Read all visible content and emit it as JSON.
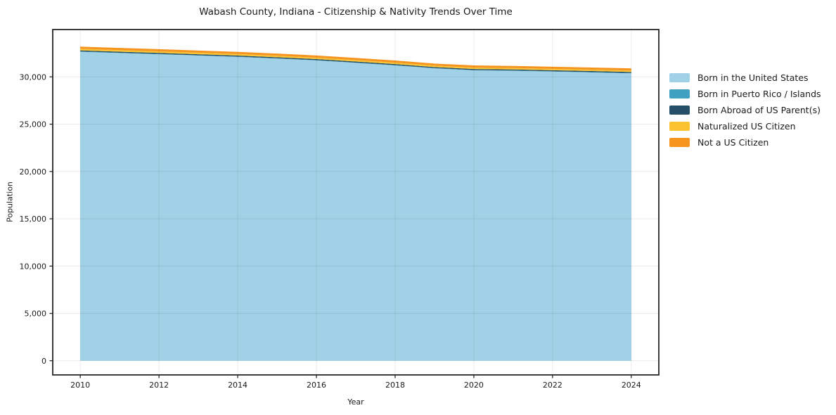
{
  "chart_data": {
    "type": "area",
    "stacked": true,
    "title": "Wabash County, Indiana - Citizenship & Nativity Trends Over Time",
    "xlabel": "Year",
    "ylabel": "Population",
    "x": [
      2010,
      2011,
      2012,
      2013,
      2014,
      2015,
      2016,
      2017,
      2018,
      2019,
      2020,
      2021,
      2022,
      2023,
      2024
    ],
    "series": [
      {
        "name": "Born in the United States",
        "color": "#a0d1e6",
        "values": [
          32650,
          32520,
          32390,
          32250,
          32110,
          31930,
          31740,
          31480,
          31210,
          30900,
          30690,
          30640,
          30560,
          30470,
          30370
        ]
      },
      {
        "name": "Born in Puerto Rico / Islands",
        "color": "#3fa0c1",
        "values": [
          35,
          30,
          30,
          30,
          30,
          30,
          30,
          30,
          30,
          30,
          30,
          30,
          30,
          30,
          35
        ]
      },
      {
        "name": "Born Abroad of US Parent(s)",
        "color": "#244f66",
        "values": [
          110,
          110,
          110,
          110,
          110,
          110,
          105,
          110,
          110,
          105,
          110,
          110,
          110,
          110,
          110
        ]
      },
      {
        "name": "Naturalized US Citizen",
        "color": "#fcc331",
        "values": [
          170,
          170,
          168,
          165,
          165,
          162,
          160,
          158,
          155,
          152,
          150,
          150,
          150,
          150,
          150
        ]
      },
      {
        "name": "Not a US Citizen",
        "color": "#f5941f",
        "values": [
          230,
          228,
          226,
          228,
          225,
          228,
          225,
          222,
          225,
          220,
          225,
          220,
          222,
          225,
          230
        ]
      }
    ],
    "xlim": [
      2009.3,
      2024.7
    ],
    "ylim": [
      -1500,
      35000
    ],
    "xticks": [
      2010,
      2012,
      2014,
      2016,
      2018,
      2020,
      2022,
      2024
    ],
    "yticks": [
      0,
      5000,
      10000,
      15000,
      20000,
      25000,
      30000
    ],
    "grid": true,
    "legend_position": "right-outside",
    "colors": {
      "background": "#ffffff",
      "grid": "rgba(0,0,0,0.08)",
      "spine": "#262626",
      "tick": "#262626",
      "text": "#1a1a1a"
    }
  }
}
